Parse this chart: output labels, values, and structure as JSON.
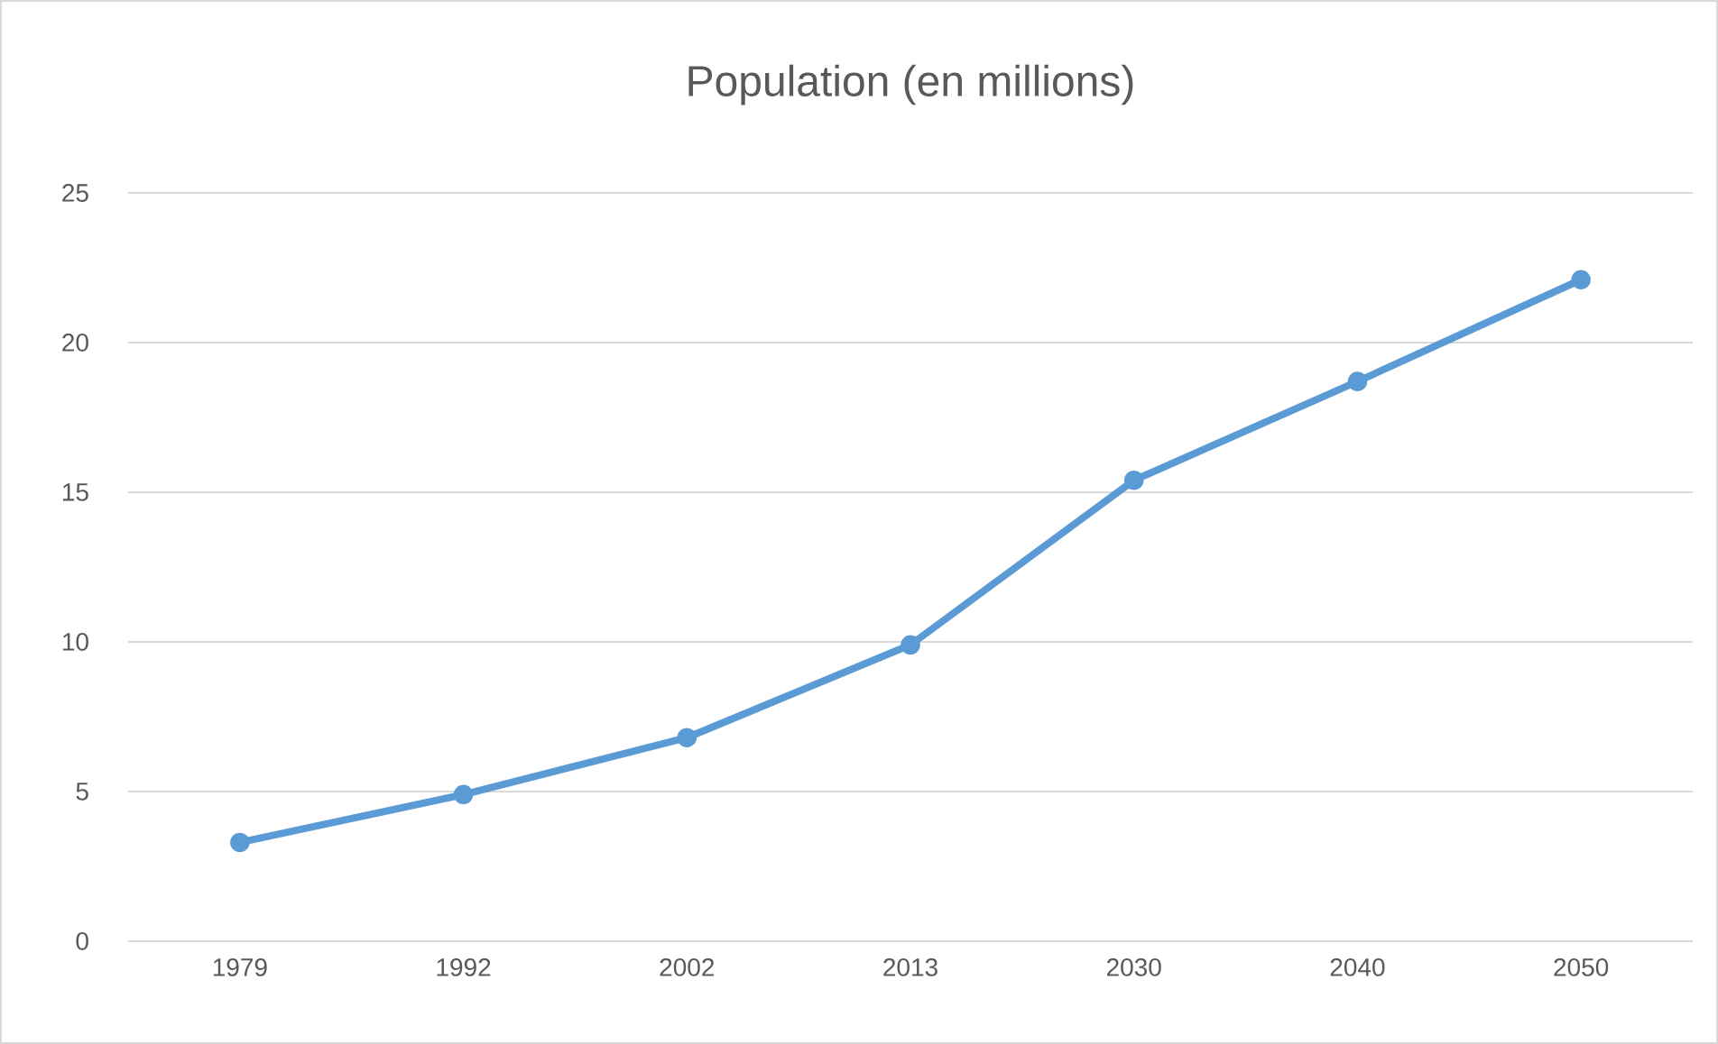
{
  "chart_data": {
    "type": "line",
    "title": "Population (en millions)",
    "categories": [
      "1979",
      "1992",
      "2002",
      "2013",
      "2030",
      "2040",
      "2050"
    ],
    "series": [
      {
        "color": "#5b9bd5",
        "values": [
          3.3,
          4.9,
          6.8,
          9.9,
          15.4,
          18.7,
          22.1
        ]
      }
    ],
    "ylim": [
      0,
      25
    ],
    "yticks": [
      0,
      5,
      10,
      15,
      20,
      25
    ],
    "grid": "y",
    "marker": "circle",
    "line_style": "solid"
  }
}
